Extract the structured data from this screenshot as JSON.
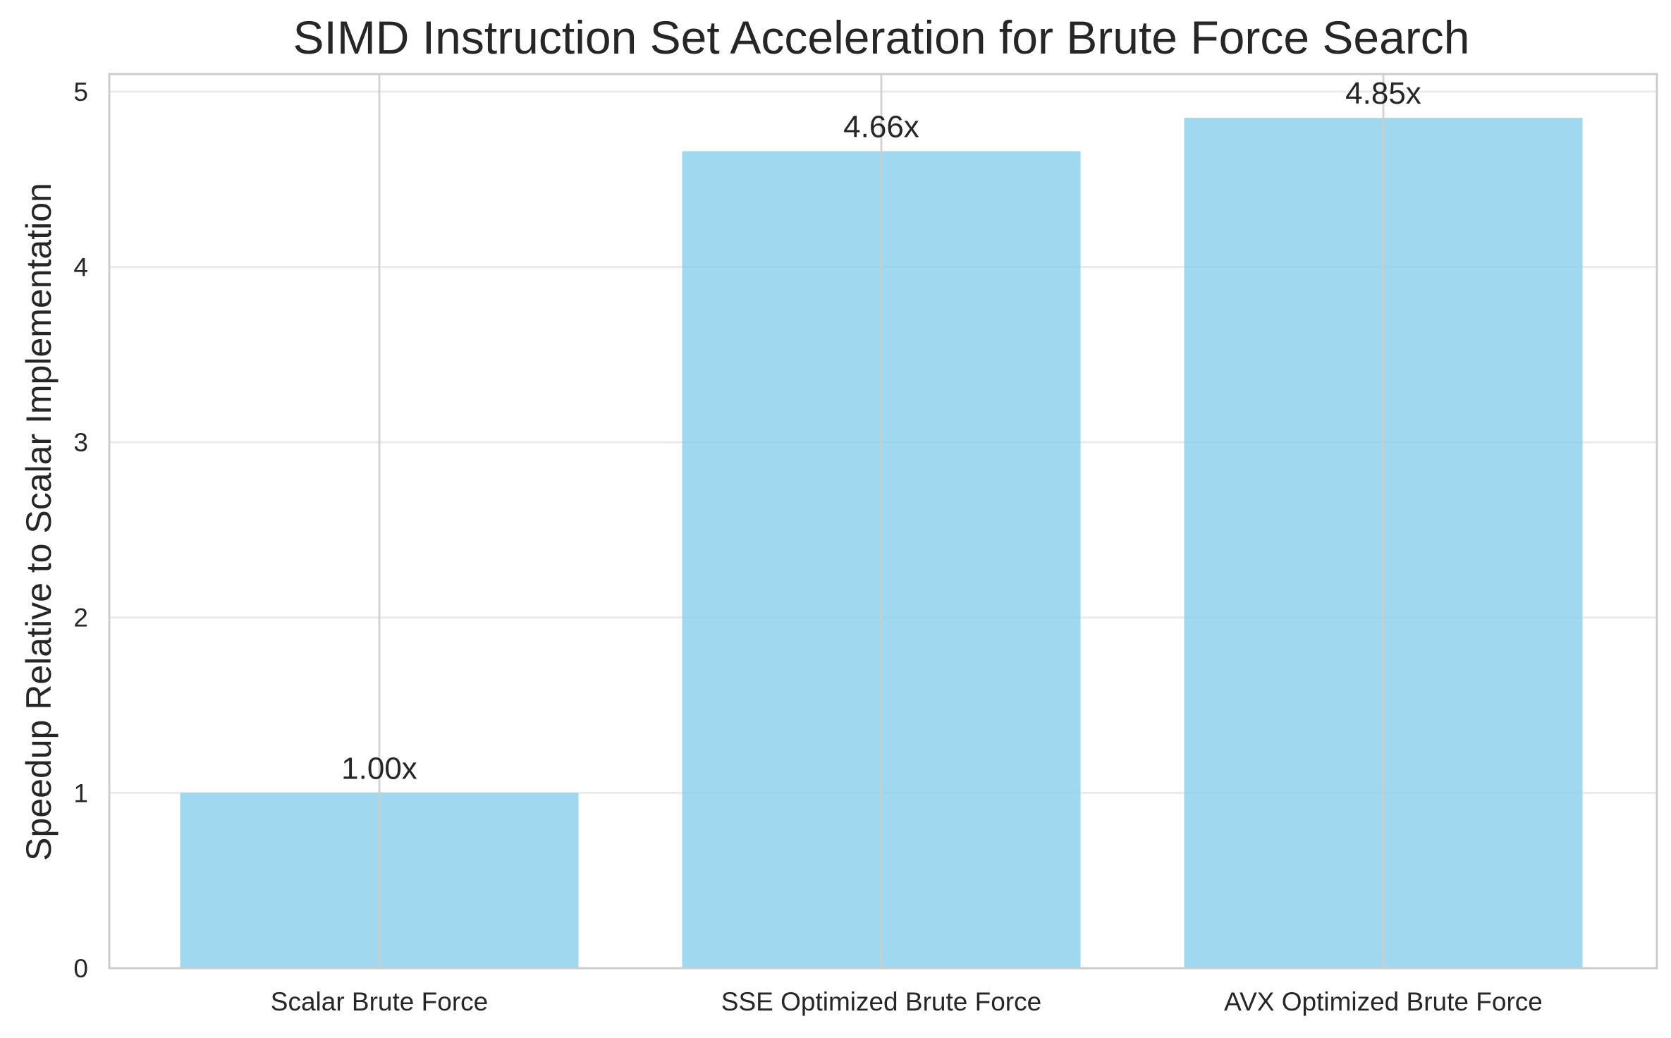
{
  "chart_data": {
    "type": "bar",
    "title": "SIMD Instruction Set Acceleration for Brute Force Search",
    "xlabel": "",
    "ylabel": "Speedup Relative to Scalar Implementation",
    "categories": [
      "Scalar Brute Force",
      "SSE Optimized Brute Force",
      "AVX Optimized Brute Force"
    ],
    "values": [
      1.0,
      4.66,
      4.85
    ],
    "value_labels": [
      "1.00x",
      "4.66x",
      "4.85x"
    ],
    "ylim": [
      0,
      5.1
    ],
    "yticks": [
      0,
      1,
      2,
      3,
      4,
      5
    ],
    "ytick_labels": [
      "0",
      "1",
      "2",
      "3",
      "4",
      "5"
    ],
    "grid": true,
    "legend": "none"
  },
  "colors": {
    "bar": "#87ceeb",
    "grid": "#ebebeb",
    "vgrid": "#cccccc",
    "spine": "#cccccc",
    "text": "#262626"
  }
}
